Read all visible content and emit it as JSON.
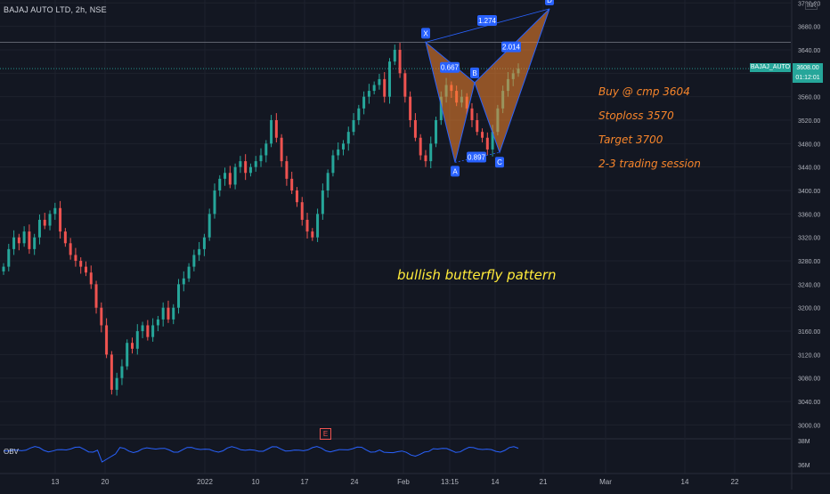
{
  "symbol_header": "BAJAJ AUTO LTD, 2h, NSE",
  "notes": [
    "Buy @ cmp 3604",
    "Stoploss 3570",
    "Target 3700",
    "2-3 trading session"
  ],
  "pattern_title": "bullish butterfly pattern",
  "obv_label": "OBV",
  "price_tag_label": "BAJAJ_AUTO",
  "price_box": {
    "price": "3608.00",
    "time": "01:12:01"
  },
  "currency": "INR",
  "event_marker": "E",
  "chart_data": {
    "type": "candlestick",
    "title": "BAJAJ AUTO LTD, 2h, NSE",
    "x_ticks": [
      "13",
      "20",
      "2022",
      "10",
      "17",
      "24",
      "Feb",
      "13:15",
      "14",
      "21",
      "Mar",
      "14",
      "22"
    ],
    "y_ticks": [
      3000,
      3040,
      3080,
      3120,
      3160,
      3200,
      3240,
      3280,
      3320,
      3360,
      3400,
      3440,
      3480,
      3520,
      3560,
      3600,
      3640,
      3680,
      3720
    ],
    "y_range": [
      2990,
      3725
    ],
    "horizontal_lines": [
      3653,
      3608
    ],
    "last_price": 3608.0,
    "closes": [
      3270,
      3300,
      3320,
      3310,
      3330,
      3300,
      3320,
      3350,
      3340,
      3360,
      3370,
      3330,
      3310,
      3290,
      3280,
      3270,
      3260,
      3240,
      3200,
      3170,
      3120,
      3060,
      3080,
      3100,
      3140,
      3130,
      3160,
      3170,
      3150,
      3170,
      3180,
      3200,
      3180,
      3200,
      3240,
      3250,
      3270,
      3290,
      3300,
      3320,
      3360,
      3400,
      3420,
      3430,
      3410,
      3440,
      3450,
      3430,
      3440,
      3450,
      3460,
      3480,
      3520,
      3490,
      3450,
      3420,
      3400,
      3380,
      3350,
      3330,
      3320,
      3360,
      3400,
      3430,
      3460,
      3470,
      3480,
      3500,
      3520,
      3540,
      3560,
      3570,
      3580,
      3590,
      3560,
      3620,
      3640,
      3600,
      3560,
      3520,
      3490,
      3460,
      3450,
      3480,
      3520,
      3560,
      3580,
      3570,
      3550,
      3560,
      3540,
      3520,
      3500,
      3490,
      3470,
      3500,
      3540,
      3570,
      3590,
      3600,
      3608
    ],
    "harmonic": {
      "name": "bullish butterfly",
      "points": [
        {
          "label": "X",
          "price": 3653
        },
        {
          "label": "A",
          "price": 3448
        },
        {
          "label": "B",
          "price": 3584
        },
        {
          "label": "C",
          "price": 3465
        },
        {
          "label": "D",
          "price": 3710
        }
      ],
      "ratios": [
        "0.667",
        "0.897",
        "1.274",
        "2.014"
      ]
    },
    "obv": {
      "label": "OBV",
      "y_ticks": [
        "38M",
        "36M"
      ]
    }
  }
}
